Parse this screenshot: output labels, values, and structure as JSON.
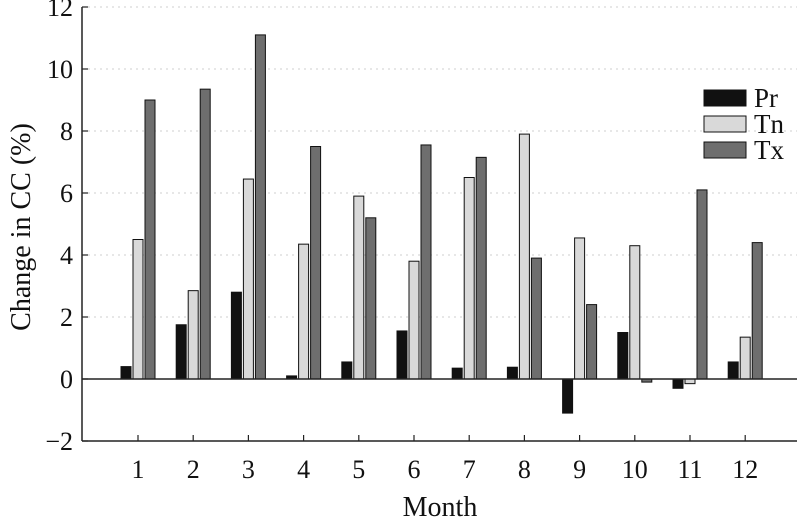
{
  "chart_data": {
    "type": "bar",
    "title": "",
    "xlabel": "Month",
    "ylabel": "Change in CC (%)",
    "categories": [
      "1",
      "2",
      "3",
      "4",
      "5",
      "6",
      "7",
      "8",
      "9",
      "10",
      "11",
      "12"
    ],
    "ylim": [
      -2,
      12
    ],
    "yticks": [
      -2,
      0,
      2,
      4,
      6,
      8,
      10,
      12
    ],
    "ytick_labels": [
      "−2",
      "0",
      "2",
      "4",
      "6",
      "8",
      "10",
      "12"
    ],
    "grid": "horizontal dotted",
    "legend_position": "right",
    "series": [
      {
        "name": "Pr",
        "color": "#111111",
        "values": [
          0.4,
          1.75,
          2.8,
          0.1,
          0.55,
          1.55,
          0.35,
          0.38,
          -1.1,
          1.5,
          -0.3,
          0.55
        ]
      },
      {
        "name": "Tn",
        "color": "#d9d9d9",
        "values": [
          4.5,
          2.85,
          6.45,
          4.35,
          5.9,
          3.8,
          6.5,
          7.9,
          4.55,
          4.3,
          -0.15,
          1.35
        ]
      },
      {
        "name": "Tx",
        "color": "#6e6e6e",
        "values": [
          9.0,
          9.35,
          11.1,
          7.5,
          5.2,
          7.55,
          7.15,
          3.9,
          2.4,
          -0.1,
          6.1,
          4.4
        ]
      }
    ]
  }
}
